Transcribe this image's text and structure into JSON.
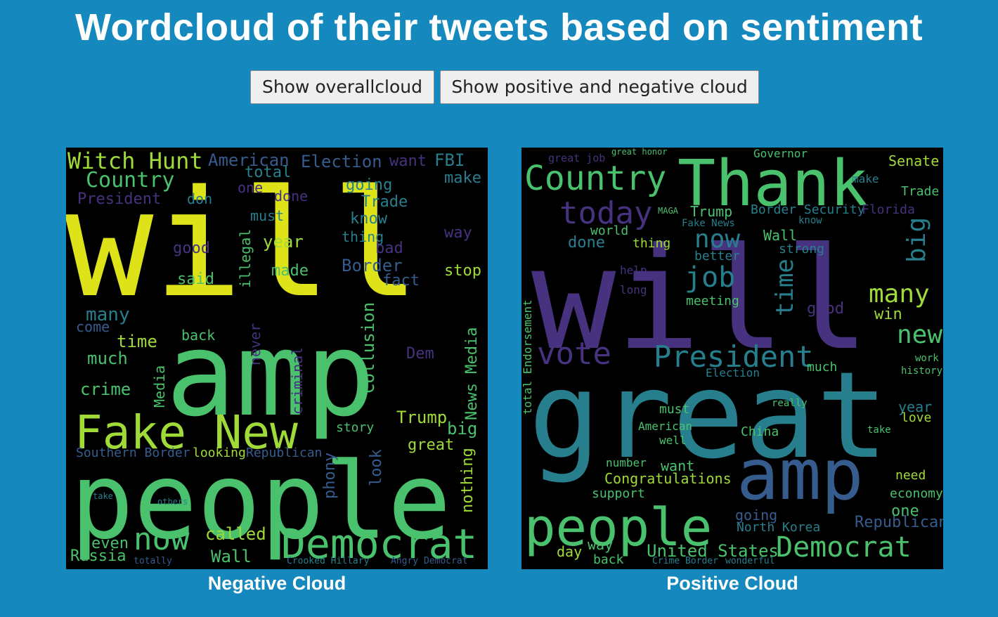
{
  "page": {
    "title": "Wordcloud of their tweets based on sentiment"
  },
  "buttons": {
    "overall": "Show overallcloud",
    "pos_neg": "Show positive and negative cloud"
  },
  "palette": {
    "yellow": "#dde318",
    "lime": "#a0da39",
    "green": "#4ac16d",
    "teal": "#1fa187",
    "cyan": "#277f8e",
    "blue": "#365c8d",
    "indigo": "#46327e",
    "purple": "#440154",
    "background": "#1589bd"
  },
  "negative": {
    "caption": "Negative Cloud",
    "words": {
      "will": "will",
      "amp": "amp",
      "people": "people",
      "fake_new": "Fake New",
      "democrat": "Democrat",
      "witch_hunt": "Witch Hunt",
      "country": "Country",
      "president": "President",
      "american": "American",
      "election": "Election",
      "total": "total",
      "one": "one",
      "done": "done",
      "want": "want",
      "fbi": "FBI",
      "make": "make",
      "going": "going",
      "trade": "Trade",
      "don": "don",
      "must": "must",
      "know": "know",
      "way": "way",
      "good": "good",
      "year": "year",
      "thing": "thing",
      "bad": "bad",
      "made": "made",
      "border": "Border",
      "said": "said",
      "fact": "fact",
      "stop": "stop",
      "illegal": "illegal",
      "many": "many",
      "come": "come",
      "time": "time",
      "much": "much",
      "crime": "crime",
      "back": "back",
      "never": "never",
      "criminal": "criminal",
      "collusion": "Collusion",
      "media": "Media",
      "dem": "Dem",
      "news_media": "News Media",
      "trump": "Trump",
      "great": "great",
      "big": "big",
      "story": "story",
      "southern_border": "Southern Border",
      "looking": "looking",
      "republican": "Republican",
      "now": "now",
      "called": "called",
      "wall": "Wall",
      "russia": "Russia",
      "even": "even",
      "phony": "phony",
      "look": "look",
      "nothing": "nothing",
      "crooked_hillary": "Crooked Hillary",
      "angry_democrat": "Angry Democrat",
      "totally": "totally",
      "take": "take",
      "others": "others"
    }
  },
  "positive": {
    "caption": "Positive Cloud",
    "words": {
      "will": "will",
      "great": "great",
      "thank": "Thank",
      "country": "Country",
      "amp": "amp",
      "people": "people",
      "democrat": "Democrat",
      "president": "President",
      "vote": "vote",
      "today": "today",
      "job": "job",
      "now": "now",
      "many": "many",
      "big": "big",
      "new": "new",
      "time": "time",
      "senate": "Senate",
      "governor": "Governor",
      "trade": "Trade",
      "make": "make",
      "trump": "Trump",
      "border_security": "Border Security",
      "florida": "Florida",
      "fake_news": "Fake News",
      "wall": "Wall",
      "strong": "strong",
      "better": "better",
      "done": "done",
      "thing": "thing",
      "world": "world",
      "meeting": "meeting",
      "good": "good",
      "win": "win",
      "much": "much",
      "election": "Election",
      "must": "must",
      "american": "American",
      "well": "well",
      "china": "China",
      "want": "want",
      "congratulations": "Congratulations",
      "support": "support",
      "north_korea": "North Korea",
      "united_states": "United States",
      "republican": "Republican",
      "one": "one",
      "year": "year",
      "love": "love",
      "need": "need",
      "economy": "economy",
      "going": "going",
      "day": "day",
      "way": "way",
      "back": "back",
      "endorsement": "total Endorsement",
      "history": "history",
      "work": "work",
      "great_job": "great job",
      "great_honor": "great honor",
      "maga": "MAGA",
      "number": "number",
      "really": "really",
      "take": "take",
      "know": "know",
      "help": "help",
      "long": "long",
      "crime_border": "Crime Border",
      "wonderful": "wonderful"
    }
  }
}
